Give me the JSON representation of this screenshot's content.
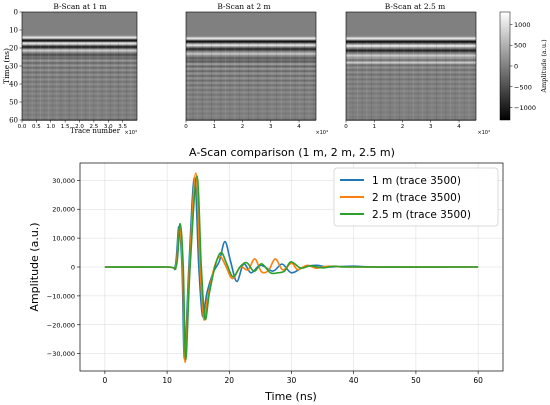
{
  "chart_data": [
    {
      "type": "heatmap",
      "title": "B-Scan at 1 m",
      "xlabel": "Trace number",
      "ylabel": "Time (ns)",
      "x_multiplier_label": "×10⁴",
      "xlim": [
        0,
        4
      ],
      "ylim": [
        60,
        0
      ],
      "x_ticks": [
        "0.0",
        "0.5",
        "1.0",
        "1.5",
        "2.0",
        "2.5",
        "3.0",
        "3.5"
      ],
      "x_tick_values": [
        0,
        0.5,
        1,
        1.5,
        2,
        2.5,
        3,
        3.5
      ],
      "y_ticks": [
        "0",
        "10",
        "20",
        "30",
        "40",
        "50",
        "60"
      ],
      "y_tick_values": [
        0,
        10,
        20,
        30,
        40,
        50,
        60
      ],
      "bands": [
        {
          "t": 14,
          "v": 1100
        },
        {
          "t": 15.6,
          "v": -1200
        },
        {
          "t": 17.2,
          "v": 1100
        },
        {
          "t": 19.2,
          "v": -1000
        },
        {
          "t": 21.2,
          "v": 800
        },
        {
          "t": 23.6,
          "v": -500
        }
      ]
    },
    {
      "type": "heatmap",
      "title": "B-Scan at 2 m",
      "x_multiplier_label": "×10⁴",
      "xlim": [
        0,
        4.6
      ],
      "ylim": [
        60,
        0
      ],
      "x_ticks": [
        "0",
        "1",
        "2",
        "3",
        "4"
      ],
      "x_tick_values": [
        0,
        1,
        2,
        3,
        4
      ],
      "bands": [
        {
          "t": 14.5,
          "v": 1100
        },
        {
          "t": 16.2,
          "v": -1200
        },
        {
          "t": 18.2,
          "v": 1000
        },
        {
          "t": 20.4,
          "v": -900
        },
        {
          "t": 23,
          "v": 700
        },
        {
          "t": 26,
          "v": -500
        }
      ]
    },
    {
      "type": "heatmap",
      "title": "B-Scan at 2.5 m",
      "x_multiplier_label": "×10⁴",
      "xlim": [
        0,
        4.6
      ],
      "ylim": [
        60,
        0
      ],
      "x_ticks": [
        "0",
        "1",
        "2",
        "3",
        "4"
      ],
      "x_tick_values": [
        0,
        1,
        2,
        3,
        4
      ],
      "colorbar": {
        "label": "Amplitude (a.u.)",
        "range": [
          -1300,
          1300
        ],
        "ticks": [
          "−1000",
          "−500",
          "0",
          "500",
          "1000"
        ],
        "tick_values": [
          -1000,
          -500,
          0,
          500,
          1000
        ]
      },
      "bands": [
        {
          "t": 14.5,
          "v": 1100
        },
        {
          "t": 16.3,
          "v": -1200
        },
        {
          "t": 18.6,
          "v": 1100
        },
        {
          "t": 21.2,
          "v": -1000
        },
        {
          "t": 24,
          "v": 800
        },
        {
          "t": 27.8,
          "v": 600
        }
      ]
    },
    {
      "type": "line",
      "title": "A-Scan comparison (1 m, 2 m, 2.5 m)",
      "xlabel": "Time (ns)",
      "ylabel": "Amplitude (a.u.)",
      "xlim": [
        -4,
        64
      ],
      "ylim": [
        -36000,
        36000
      ],
      "x_ticks": [
        "0",
        "10",
        "20",
        "30",
        "40",
        "50",
        "60"
      ],
      "x_tick_values": [
        0,
        10,
        20,
        30,
        40,
        50,
        60
      ],
      "y_ticks": [
        "−30,000",
        "−20,000",
        "−10,000",
        "0",
        "10,000",
        "20,000",
        "30,000"
      ],
      "y_tick_values": [
        -30000,
        -20000,
        -10000,
        0,
        10000,
        20000,
        30000
      ],
      "grid": true,
      "legend_position": "top-right",
      "series": [
        {
          "name": "1 m (trace 3500)",
          "color": "#1f77b4",
          "points": [
            [
              0,
              0
            ],
            [
              10,
              0
            ],
            [
              11.3,
              200
            ],
            [
              11.9,
              14000
            ],
            [
              12.4,
              0
            ],
            [
              12.8,
              -32000
            ],
            [
              13.5,
              0
            ],
            [
              14.4,
              31000
            ],
            [
              15.1,
              0
            ],
            [
              15.7,
              -17000
            ],
            [
              16.4,
              -9000
            ],
            [
              17.4,
              -2000
            ],
            [
              18.4,
              2000
            ],
            [
              19.3,
              8800
            ],
            [
              20.2,
              2000
            ],
            [
              21.2,
              -5000
            ],
            [
              22.3,
              1000
            ],
            [
              23.5,
              -2000
            ],
            [
              25,
              600
            ],
            [
              27,
              -1400
            ],
            [
              28.5,
              1000
            ],
            [
              30,
              -2000
            ],
            [
              32,
              0
            ],
            [
              34,
              600
            ],
            [
              36,
              0
            ],
            [
              40,
              300
            ],
            [
              44,
              0
            ],
            [
              60,
              0
            ]
          ]
        },
        {
          "name": "2 m (trace 3500)",
          "color": "#ff7f0e",
          "points": [
            [
              0,
              0
            ],
            [
              10,
              0
            ],
            [
              11.4,
              300
            ],
            [
              12,
              13500
            ],
            [
              12.5,
              0
            ],
            [
              12.9,
              -33000
            ],
            [
              13.6,
              0
            ],
            [
              14.6,
              32500
            ],
            [
              15.3,
              0
            ],
            [
              15.9,
              -18000
            ],
            [
              16.5,
              -11000
            ],
            [
              17.6,
              0
            ],
            [
              18.5,
              3600
            ],
            [
              19.4,
              500
            ],
            [
              20.5,
              -4000
            ],
            [
              21.8,
              0
            ],
            [
              23,
              -1000
            ],
            [
              24.1,
              2800
            ],
            [
              25.2,
              -1700
            ],
            [
              26.3,
              -1200
            ],
            [
              27.4,
              2800
            ],
            [
              28.6,
              -1000
            ],
            [
              30,
              1300
            ],
            [
              31,
              -900
            ],
            [
              32.5,
              600
            ],
            [
              34,
              -400
            ],
            [
              36,
              300
            ],
            [
              40,
              0
            ],
            [
              60,
              0
            ]
          ]
        },
        {
          "name": "2.5 m (trace 3500)",
          "color": "#2ca02c",
          "points": [
            [
              0,
              0
            ],
            [
              10,
              0
            ],
            [
              11.5,
              500
            ],
            [
              12.1,
              15000
            ],
            [
              12.6,
              0
            ],
            [
              13,
              -32000
            ],
            [
              13.7,
              0
            ],
            [
              14.8,
              31500
            ],
            [
              15.5,
              0
            ],
            [
              16.1,
              -18000
            ],
            [
              16.8,
              -9000
            ],
            [
              17.8,
              1000
            ],
            [
              18.7,
              5000
            ],
            [
              19.6,
              1000
            ],
            [
              20.6,
              -3400
            ],
            [
              21.7,
              0
            ],
            [
              22.8,
              1500
            ],
            [
              24,
              -1500
            ],
            [
              25.2,
              1100
            ],
            [
              26.6,
              -2000
            ],
            [
              27.8,
              -2000
            ],
            [
              28.9,
              -1400
            ],
            [
              29.9,
              1800
            ],
            [
              31.5,
              -400
            ],
            [
              33,
              400
            ],
            [
              35,
              -300
            ],
            [
              37,
              300
            ],
            [
              40,
              0
            ],
            [
              60,
              0
            ]
          ]
        }
      ]
    }
  ]
}
